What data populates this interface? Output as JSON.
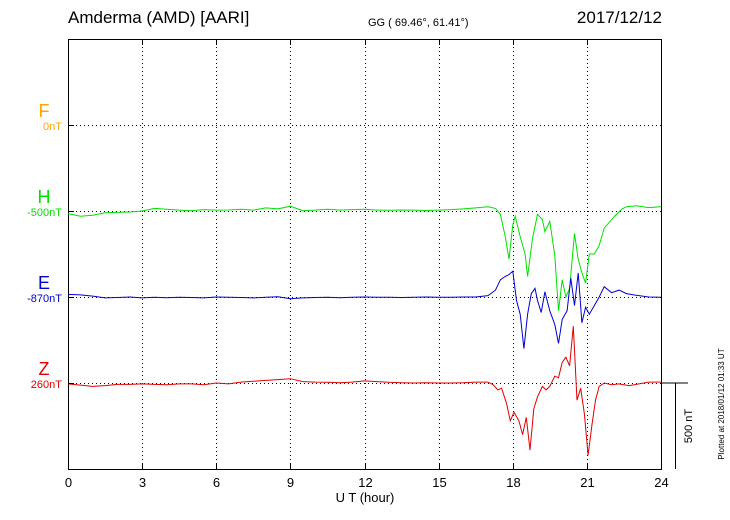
{
  "header": {
    "station": "Amderma (AMD)  [AARI]",
    "coords": "GG ( 69.46°,  61.41°)",
    "date": "2017/12/12"
  },
  "footer": {
    "plotted": "Plotted at 2018/01/12 01:33 UT"
  },
  "chart_data": {
    "type": "line",
    "title": "Amderma (AMD)  [AARI]",
    "xlabel": "U T (hour)",
    "xlim": [
      0,
      24
    ],
    "xticks": [
      "0",
      "3",
      "6",
      "9",
      "12",
      "15",
      "18",
      "21",
      "24"
    ],
    "grid": true,
    "scale_bar": "500 nT",
    "series": [
      {
        "name": "F",
        "offset": "0nT",
        "color": "#ffa500",
        "baseline_row": 1,
        "points": []
      },
      {
        "name": "H",
        "offset": "-500nT",
        "color": "#00e000",
        "baseline_row": 2,
        "points": [
          [
            0,
            -15
          ],
          [
            0.5,
            -30
          ],
          [
            1,
            -25
          ],
          [
            1.5,
            -10
          ],
          [
            2,
            -8
          ],
          [
            2.5,
            -6
          ],
          [
            3,
            0
          ],
          [
            3.5,
            15
          ],
          [
            4,
            10
          ],
          [
            4.5,
            5
          ],
          [
            5,
            2
          ],
          [
            5.5,
            8
          ],
          [
            6,
            5
          ],
          [
            6.5,
            6
          ],
          [
            7,
            10
          ],
          [
            7.5,
            5
          ],
          [
            8,
            18
          ],
          [
            8.5,
            12
          ],
          [
            9,
            28
          ],
          [
            9.5,
            2
          ],
          [
            10,
            5
          ],
          [
            10.5,
            10
          ],
          [
            11,
            5
          ],
          [
            11.5,
            8
          ],
          [
            12,
            10
          ],
          [
            12.5,
            5
          ],
          [
            13,
            4
          ],
          [
            13.5,
            6
          ],
          [
            14,
            5
          ],
          [
            14.5,
            3
          ],
          [
            15,
            5
          ],
          [
            15.5,
            8
          ],
          [
            16,
            12
          ],
          [
            16.5,
            18
          ],
          [
            17,
            25
          ],
          [
            17.3,
            15
          ],
          [
            17.5,
            -20
          ],
          [
            17.7,
            -150
          ],
          [
            17.85,
            -280
          ],
          [
            18,
            -80
          ],
          [
            18.1,
            -30
          ],
          [
            18.3,
            -150
          ],
          [
            18.5,
            -250
          ],
          [
            18.6,
            -380
          ],
          [
            18.8,
            -160
          ],
          [
            19,
            -20
          ],
          [
            19.2,
            -50
          ],
          [
            19.3,
            -120
          ],
          [
            19.5,
            -60
          ],
          [
            19.7,
            -260
          ],
          [
            19.85,
            -580
          ],
          [
            20,
            -400
          ],
          [
            20.15,
            -500
          ],
          [
            20.3,
            -450
          ],
          [
            20.5,
            -130
          ],
          [
            20.65,
            -280
          ],
          [
            20.8,
            -360
          ],
          [
            20.95,
            -420
          ],
          [
            21.1,
            -250
          ],
          [
            21.3,
            -250
          ],
          [
            21.5,
            -200
          ],
          [
            21.7,
            -100
          ],
          [
            22,
            -50
          ],
          [
            22.2,
            -20
          ],
          [
            22.4,
            10
          ],
          [
            22.6,
            25
          ],
          [
            23,
            30
          ],
          [
            23.5,
            20
          ],
          [
            24,
            25
          ]
        ]
      },
      {
        "name": "E",
        "offset": "-870nT",
        "color": "#0000d0",
        "baseline_row": 3,
        "points": [
          [
            0,
            15
          ],
          [
            0.5,
            12
          ],
          [
            1,
            5
          ],
          [
            1.5,
            -5
          ],
          [
            2,
            -3
          ],
          [
            2.5,
            0
          ],
          [
            3,
            -5
          ],
          [
            3.5,
            -2
          ],
          [
            4,
            -4
          ],
          [
            4.5,
            -2
          ],
          [
            5,
            -3
          ],
          [
            5.5,
            -5
          ],
          [
            6,
            0
          ],
          [
            6.5,
            -2
          ],
          [
            7,
            -3
          ],
          [
            7.5,
            -5
          ],
          [
            8,
            -2
          ],
          [
            8.5,
            2
          ],
          [
            9,
            -10
          ],
          [
            9.5,
            -5
          ],
          [
            10,
            -3
          ],
          [
            10.5,
            -2
          ],
          [
            11,
            -4
          ],
          [
            11.5,
            -2
          ],
          [
            12,
            0
          ],
          [
            12.5,
            -2
          ],
          [
            13,
            -1
          ],
          [
            13.5,
            -3
          ],
          [
            14,
            -2
          ],
          [
            14.5,
            0
          ],
          [
            15,
            -1
          ],
          [
            15.5,
            -2
          ],
          [
            16,
            0
          ],
          [
            16.5,
            0
          ],
          [
            17,
            8
          ],
          [
            17.3,
            40
          ],
          [
            17.5,
            100
          ],
          [
            17.7,
            120
          ],
          [
            17.85,
            130
          ],
          [
            18,
            150
          ],
          [
            18.15,
            -20
          ],
          [
            18.3,
            -100
          ],
          [
            18.45,
            -300
          ],
          [
            18.6,
            -100
          ],
          [
            18.75,
            20
          ],
          [
            18.9,
            50
          ],
          [
            19,
            -20
          ],
          [
            19.15,
            -90
          ],
          [
            19.3,
            30
          ],
          [
            19.5,
            -80
          ],
          [
            19.7,
            -160
          ],
          [
            19.85,
            -270
          ],
          [
            20,
            -130
          ],
          [
            20.2,
            -80
          ],
          [
            20.35,
            110
          ],
          [
            20.5,
            -50
          ],
          [
            20.65,
            140
          ],
          [
            20.8,
            -150
          ],
          [
            20.95,
            -60
          ],
          [
            21.1,
            -100
          ],
          [
            21.3,
            -50
          ],
          [
            21.5,
            0
          ],
          [
            21.7,
            60
          ],
          [
            22,
            25
          ],
          [
            22.3,
            40
          ],
          [
            22.6,
            20
          ],
          [
            23,
            10
          ],
          [
            23.5,
            0
          ],
          [
            24,
            -2
          ]
        ]
      },
      {
        "name": "Z",
        "offset": "260nT",
        "color": "#e00000",
        "baseline_row": 4,
        "points": [
          [
            0,
            -5
          ],
          [
            0.5,
            -12
          ],
          [
            1,
            -20
          ],
          [
            1.5,
            -15
          ],
          [
            2,
            -8
          ],
          [
            2.5,
            -8
          ],
          [
            3,
            -5
          ],
          [
            3.5,
            -8
          ],
          [
            4,
            -10
          ],
          [
            4.5,
            -5
          ],
          [
            5,
            -5
          ],
          [
            5.5,
            -10
          ],
          [
            6,
            0
          ],
          [
            6.5,
            -5
          ],
          [
            7,
            5
          ],
          [
            7.5,
            10
          ],
          [
            8,
            15
          ],
          [
            8.5,
            20
          ],
          [
            9,
            25
          ],
          [
            9.5,
            8
          ],
          [
            10,
            5
          ],
          [
            10.5,
            4
          ],
          [
            11,
            2
          ],
          [
            11.5,
            5
          ],
          [
            12,
            12
          ],
          [
            12.5,
            8
          ],
          [
            13,
            4
          ],
          [
            13.5,
            2
          ],
          [
            14,
            0
          ],
          [
            14.5,
            2
          ],
          [
            15,
            0
          ],
          [
            15.5,
            0
          ],
          [
            16,
            2
          ],
          [
            16.5,
            5
          ],
          [
            17,
            5
          ],
          [
            17.2,
            -10
          ],
          [
            17.4,
            -40
          ],
          [
            17.55,
            -30
          ],
          [
            17.75,
            -120
          ],
          [
            17.9,
            -220
          ],
          [
            18.05,
            -170
          ],
          [
            18.25,
            -220
          ],
          [
            18.4,
            -300
          ],
          [
            18.55,
            -200
          ],
          [
            18.7,
            -390
          ],
          [
            18.85,
            -150
          ],
          [
            19,
            -80
          ],
          [
            19.2,
            -20
          ],
          [
            19.35,
            -40
          ],
          [
            19.5,
            -20
          ],
          [
            19.7,
            40
          ],
          [
            19.85,
            30
          ],
          [
            20,
            120
          ],
          [
            20.15,
            150
          ],
          [
            20.3,
            100
          ],
          [
            20.45,
            330
          ],
          [
            20.6,
            -100
          ],
          [
            20.75,
            -30
          ],
          [
            20.9,
            -180
          ],
          [
            21.05,
            -420
          ],
          [
            21.2,
            -250
          ],
          [
            21.35,
            -100
          ],
          [
            21.5,
            -20
          ],
          [
            21.7,
            0
          ],
          [
            22,
            -10
          ],
          [
            22.3,
            -5
          ],
          [
            22.7,
            -15
          ],
          [
            23,
            -8
          ],
          [
            23.5,
            5
          ],
          [
            24,
            5
          ]
        ]
      }
    ]
  }
}
